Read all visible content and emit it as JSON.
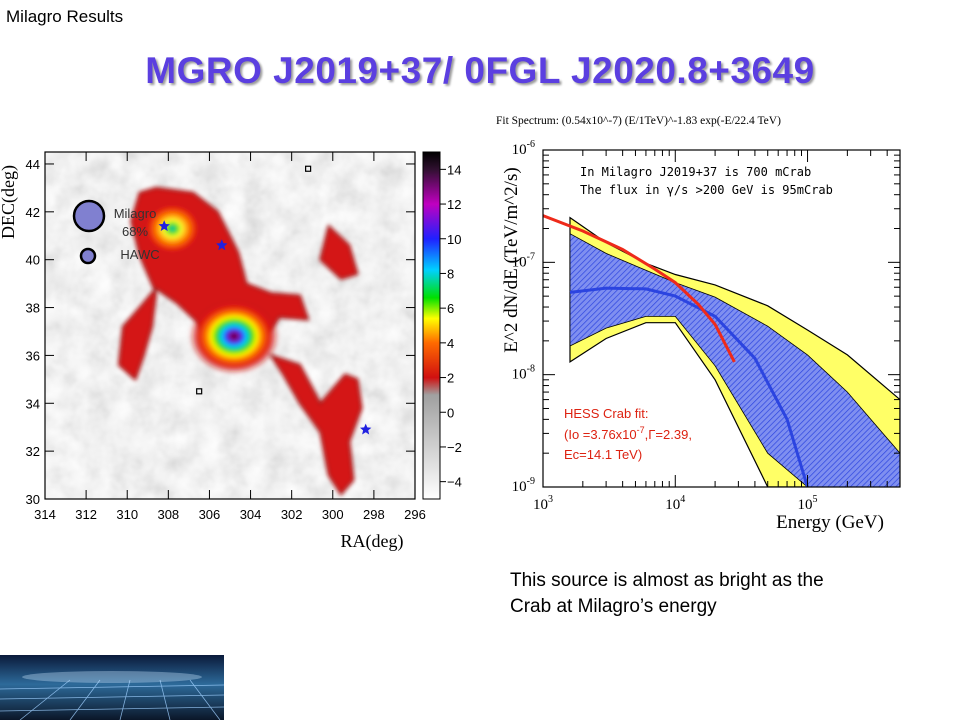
{
  "header": "Milagro Results",
  "title": "MGRO J2019+37/ 0FGL J2020.8+3649",
  "caption": [
    "This source is almost as bright as the",
    "Crab at Milagro’s energy"
  ],
  "colors": {
    "title": "#5b3fe0",
    "fit_line": "#2b44e0",
    "band_1sigma": "#7f8ff0",
    "band_2sigma": "#ffff66",
    "hess_line": "#ee2a1a",
    "hess_text": "#dd2211"
  },
  "chart_data": [
    {
      "type": "heatmap",
      "xlabel": "RA(deg)",
      "ylabel": "DEC(deg)",
      "xlim": [
        314,
        296
      ],
      "ylim": [
        30,
        44.5
      ],
      "x_ticks": [
        296,
        298,
        300,
        302,
        304,
        306,
        308,
        310,
        312,
        314
      ],
      "y_ticks": [
        30,
        32,
        34,
        36,
        38,
        40,
        42,
        44
      ],
      "colorbar": {
        "range": [
          -5,
          15
        ],
        "ticks": [
          14,
          12,
          10,
          8,
          6,
          4,
          2,
          0,
          -2,
          -4
        ]
      },
      "legend": {
        "milagro_label": [
          "Milagro",
          "68%"
        ],
        "hawc_label": "HAWC"
      },
      "hotspots": [
        {
          "ra": 304.8,
          "dec": 36.8,
          "peak": 14
        },
        {
          "ra": 307.8,
          "dec": 41.3,
          "peak": 8
        },
        {
          "ra": 305.0,
          "dec": 39.5,
          "peak": 4.5
        },
        {
          "ra": 302.5,
          "dec": 38.6,
          "peak": 4
        },
        {
          "ra": 309.6,
          "dec": 36.8,
          "peak": 4
        },
        {
          "ra": 298.8,
          "dec": 34.5,
          "peak": 3.5
        }
      ],
      "markers_star": [
        {
          "ra": 308.2,
          "dec": 41.4
        },
        {
          "ra": 305.4,
          "dec": 40.6
        },
        {
          "ra": 298.4,
          "dec": 32.9
        }
      ],
      "markers_square": [
        {
          "ra": 301.2,
          "dec": 43.8
        },
        {
          "ra": 306.5,
          "dec": 34.5
        }
      ]
    },
    {
      "type": "line",
      "fit_spectrum_label": "Fit Spectrum: (0.54x10^-7) (E/1TeV)^-1.83 exp(-E/22.4 TeV)",
      "xlabel": "Energy (GeV)",
      "ylabel": "E^2 dN/dE (TeV/m^2/s)",
      "xscale": "log",
      "yscale": "log",
      "x_tick_labels": {
        "exponents": [
          "3",
          "4",
          "5"
        ],
        "base": "10"
      },
      "y_tick_labels": {
        "exponents": [
          "-6",
          "-7",
          "-8",
          "-9"
        ],
        "base": "10"
      },
      "xlim": [
        1000,
        500000
      ],
      "ylim": [
        1e-09,
        1e-06
      ],
      "annotation": [
        "In Milagro J2019+37 is 700 mCrab",
        "The flux in γ/s >200 GeV is 95mCrab"
      ],
      "hess_annotation": {
        "line1": "HESS Crab fit:",
        "line2_a": "(Io =3.76x10",
        "line2_sup": "-7",
        "line2_b": ",Γ=2.39,",
        "line3": "Ec=14.1 TeV)"
      },
      "series": [
        {
          "role": "fit",
          "x": [
            1600,
            3000,
            6000,
            10000,
            20000,
            40000,
            70000,
            100000
          ],
          "y": [
            5.4e-08,
            5.9e-08,
            5.8e-08,
            5e-08,
            3.3e-08,
            1.4e-08,
            4e-09,
            1e-09
          ]
        },
        {
          "role": "hess",
          "x": [
            1000,
            2000,
            4000,
            7000,
            10000,
            15000,
            20000,
            28000
          ],
          "y": [
            2.6e-07,
            1.9e-07,
            1.3e-07,
            8.7e-08,
            6.6e-08,
            4.2e-08,
            2.8e-08,
            1.3e-08
          ]
        }
      ],
      "band_1sigma": {
        "x": [
          1600,
          3000,
          6000,
          10000,
          20000,
          50000,
          100000,
          200000,
          500000
        ],
        "upper": [
          1.8e-07,
          1.2e-07,
          8.5e-08,
          6.6e-08,
          4.9e-08,
          2.7e-08,
          1.5e-08,
          7e-09,
          2e-09
        ],
        "lower": [
          1.8e-08,
          2.6e-08,
          3.3e-08,
          3.3e-08,
          1.2e-08,
          2e-09,
          1e-09,
          1e-09,
          1e-09
        ]
      },
      "band_2sigma": {
        "x": [
          1600,
          3000,
          6000,
          10000,
          20000,
          50000,
          100000,
          200000,
          500000
        ],
        "upper": [
          2.5e-07,
          1.5e-07,
          9.8e-08,
          7.8e-08,
          6.3e-08,
          4.1e-08,
          2.5e-08,
          1.5e-08,
          6e-09
        ],
        "lower": [
          1.3e-08,
          2.1e-08,
          2.9e-08,
          2.9e-08,
          9e-09,
          1e-09,
          1e-09,
          1e-09,
          1e-09
        ]
      }
    }
  ]
}
